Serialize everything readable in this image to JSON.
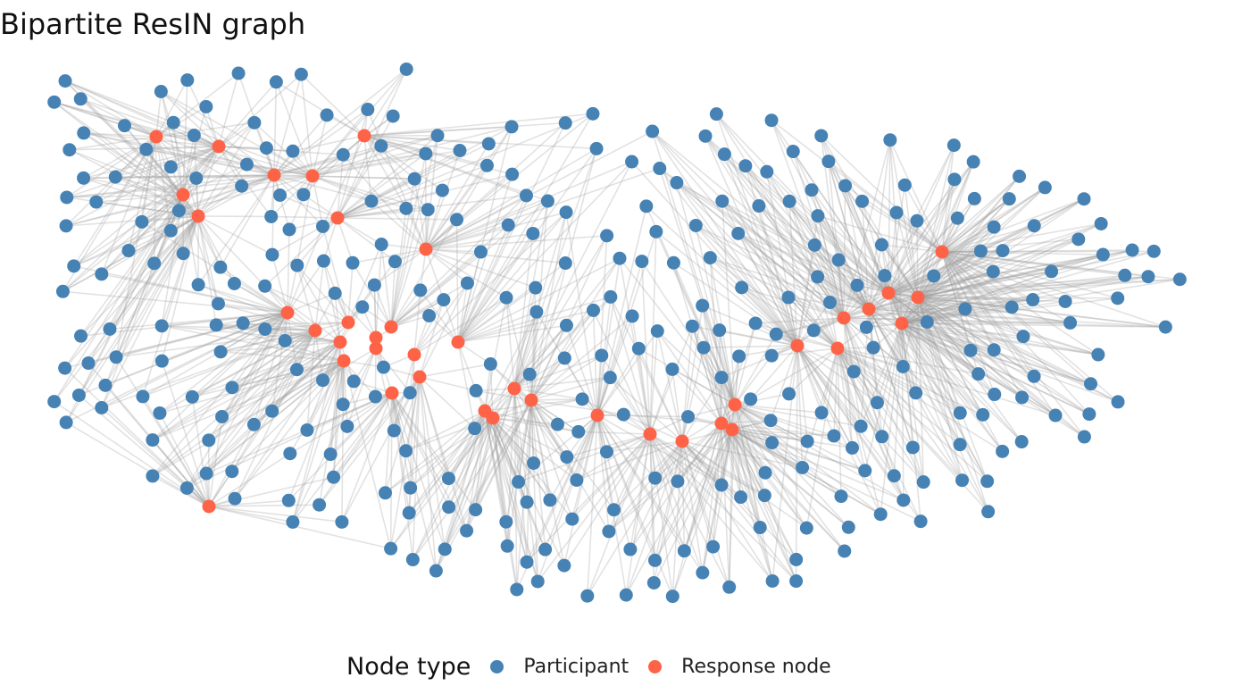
{
  "title": "Bipartite ResIN graph",
  "legend": {
    "title": "Node type",
    "items": [
      {
        "label": "Participant",
        "color": "#4682B4"
      },
      {
        "label": "Response node",
        "color": "#FF6347"
      }
    ]
  },
  "colors": {
    "participant": "#4682B4",
    "response": "#FF6347",
    "edge": "#9E9E9E"
  }
}
